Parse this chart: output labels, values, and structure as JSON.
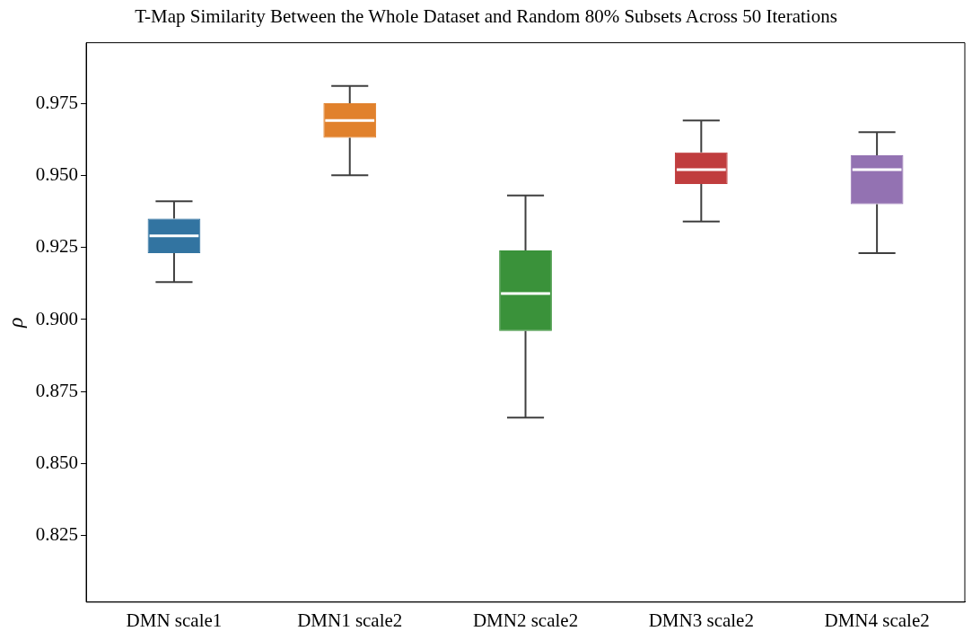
{
  "chart_data": {
    "type": "box",
    "title": "T-Map Similarity Between the Whole Dataset and Random 80% Subsets Across 50 Iterations",
    "ylabel": "ρ",
    "categories": [
      "DMN scale1",
      "DMN1 scale2",
      "DMN2 scale2",
      "DMN3 scale2",
      "DMN4 scale2"
    ],
    "colors": [
      "#3274a1",
      "#e1812c",
      "#3a923a",
      "#c03d3e",
      "#9372b2"
    ],
    "boxes": [
      {
        "low": 0.913,
        "q1": 0.923,
        "median": 0.929,
        "q3": 0.935,
        "high": 0.941
      },
      {
        "low": 0.95,
        "q1": 0.963,
        "median": 0.969,
        "q3": 0.975,
        "high": 0.981
      },
      {
        "low": 0.866,
        "q1": 0.896,
        "median": 0.909,
        "q3": 0.924,
        "high": 0.943
      },
      {
        "low": 0.934,
        "q1": 0.947,
        "median": 0.952,
        "q3": 0.958,
        "high": 0.969
      },
      {
        "low": 0.923,
        "q1": 0.94,
        "median": 0.952,
        "q3": 0.957,
        "high": 0.965
      }
    ],
    "ylim": [
      0.802,
      0.996
    ],
    "yticks": [
      0.825,
      {
        "value": 0.85,
        "label": "0.850"
      },
      0.875,
      {
        "value": 0.9,
        "label": "0.900"
      },
      0.925,
      {
        "value": 0.95,
        "label": "0.950"
      },
      0.975
    ],
    "grid": false,
    "legend": false
  }
}
